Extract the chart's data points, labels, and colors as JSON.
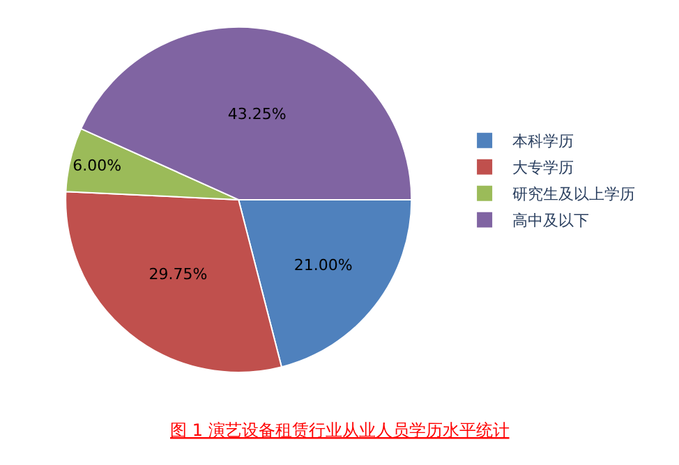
{
  "chart_data": {
    "type": "pie",
    "categories": [
      "本科学历",
      "大专学历",
      "研究生及以上学历",
      "高中及以下"
    ],
    "values": [
      21.0,
      29.75,
      6.0,
      43.25
    ],
    "colors": [
      "#4f81bd",
      "#c0504d",
      "#9bbb59",
      "#8064a2"
    ],
    "value_labels": [
      "21.00%",
      "29.75%",
      "6.00%",
      "43.25%"
    ],
    "legend": "right",
    "annotations": [
      "图 1 演艺设备租赁行业从业人员学历水平统计"
    ]
  }
}
